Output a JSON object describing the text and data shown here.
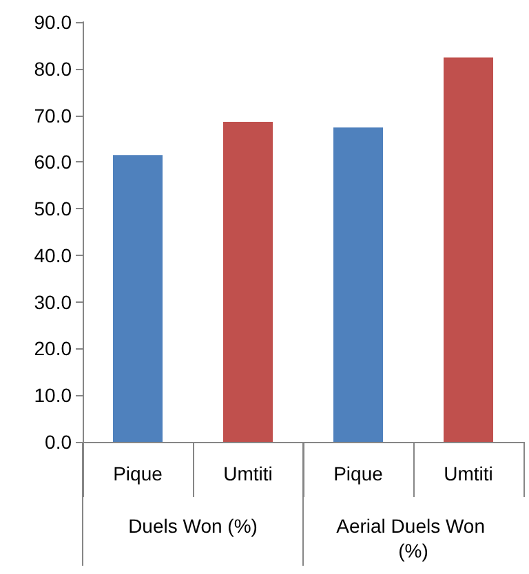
{
  "chart_data": {
    "type": "bar",
    "categories": [
      "Pique",
      "Umtiti",
      "Pique",
      "Umtiti"
    ],
    "values": [
      61.5,
      68.6,
      67.4,
      82.4
    ],
    "colors": [
      "#4f81bd",
      "#c0504d",
      "#4f81bd",
      "#c0504d"
    ],
    "ylim": [
      0,
      90
    ],
    "yticks": [
      {
        "value": 0,
        "label": "0.0"
      },
      {
        "value": 10,
        "label": "10.0"
      },
      {
        "value": 20,
        "label": "20.0"
      },
      {
        "value": 30,
        "label": "30.0"
      },
      {
        "value": 40,
        "label": "40.0"
      },
      {
        "value": 50,
        "label": "50.0"
      },
      {
        "value": 60,
        "label": "60.0"
      },
      {
        "value": 70,
        "label": "70.0"
      },
      {
        "value": 80,
        "label": "80.0"
      },
      {
        "value": 90,
        "label": "90.0"
      }
    ],
    "annotations": [
      "Duels Won (%)",
      "Aerial Duels Won (%)"
    ],
    "grid": false
  }
}
